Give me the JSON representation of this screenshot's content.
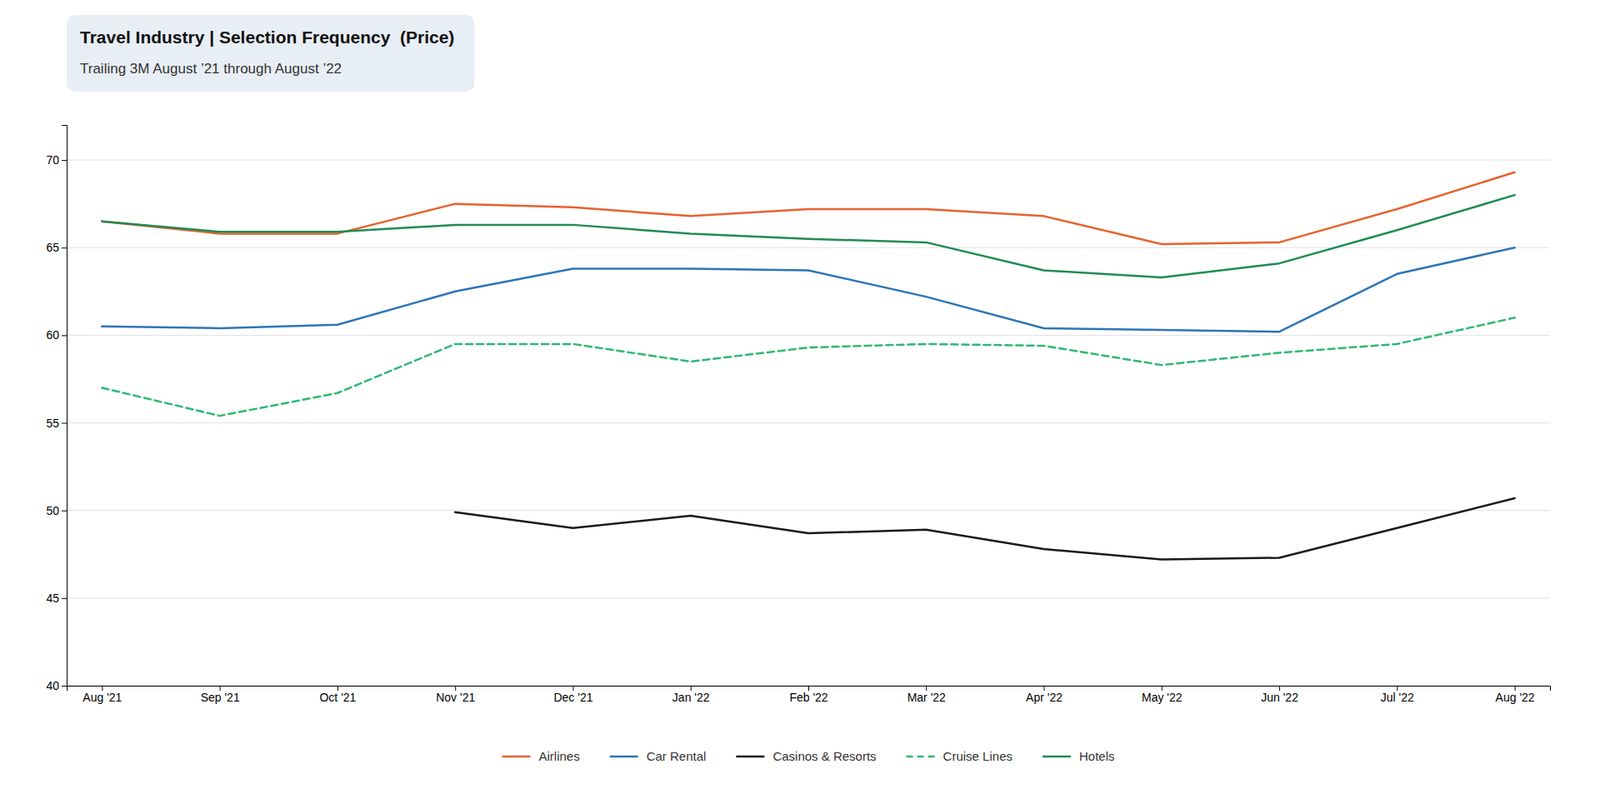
{
  "chart_data": {
    "type": "line",
    "title": "Travel Industry | Selection Frequency  (Price)",
    "subtitle": "Trailing 3M August ’21 through August ’22",
    "categories": [
      "Aug '21",
      "Sep '21",
      "Oct '21",
      "Nov '21",
      "Dec '21",
      "Jan '22",
      "Feb '22",
      "Mar '22",
      "Apr '22",
      "May '22",
      "Jun '22",
      "Jul '22",
      "Aug '22"
    ],
    "series": [
      {
        "name": "Airlines",
        "color": "#E8612C",
        "line_style": "solid",
        "values": [
          66.5,
          65.8,
          65.8,
          67.5,
          67.3,
          66.8,
          67.2,
          67.2,
          66.8,
          65.2,
          65.3,
          67.2,
          69.3
        ]
      },
      {
        "name": "Car Rental",
        "color": "#2E75B6",
        "line_style": "solid",
        "values": [
          60.5,
          60.4,
          60.6,
          62.5,
          63.8,
          63.8,
          63.7,
          62.2,
          60.4,
          60.3,
          60.2,
          63.5,
          65.0
        ]
      },
      {
        "name": "Casinos & Resorts",
        "color": "#1a1a1a",
        "line_style": "solid",
        "values": [
          null,
          null,
          null,
          49.9,
          49.0,
          49.7,
          48.7,
          48.9,
          47.8,
          47.2,
          47.3,
          49.0,
          50.7
        ]
      },
      {
        "name": "Cruise Lines",
        "color": "#2EB872",
        "line_style": "dashed",
        "values": [
          57.0,
          55.4,
          56.7,
          59.5,
          59.5,
          58.5,
          59.3,
          59.5,
          59.4,
          58.3,
          59.0,
          59.5,
          61.0
        ]
      },
      {
        "name": "Hotels",
        "color": "#1F8C52",
        "line_style": "solid",
        "values": [
          66.5,
          65.9,
          65.9,
          66.3,
          66.3,
          65.8,
          65.5,
          65.3,
          63.7,
          63.3,
          64.1,
          66.0,
          68.0
        ]
      }
    ],
    "ylim": [
      40,
      72
    ],
    "yticks": [
      40,
      45,
      50,
      55,
      60,
      65,
      70
    ],
    "grid": true,
    "legend": "bottom"
  }
}
